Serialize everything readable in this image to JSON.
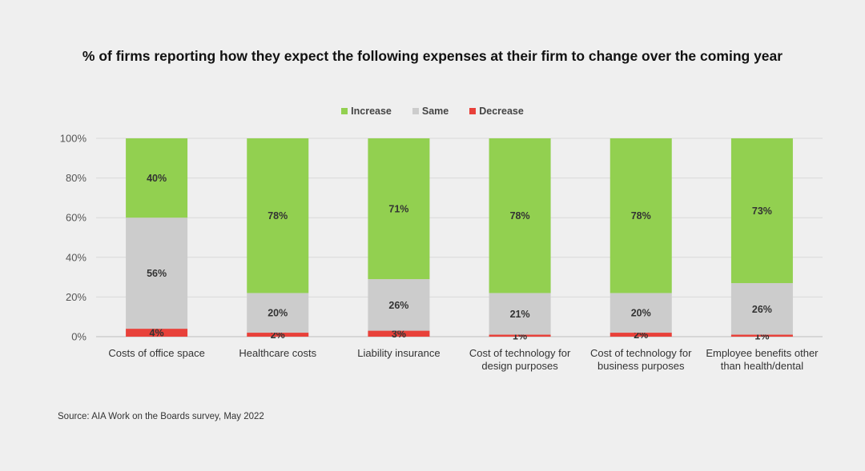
{
  "title": "% of firms reporting how they expect the following expenses at their firm to change over the coming year",
  "source": "Source: AIA Work on the Boards survey, May 2022",
  "colors": {
    "increase": "#92d050",
    "same": "#cccccc",
    "decrease": "#e8413a",
    "grid": "#d9d9d9",
    "background": "#efefef"
  },
  "chart_data": {
    "type": "bar",
    "stacked": true,
    "categories": [
      [
        "Costs of office space"
      ],
      [
        "Healthcare costs"
      ],
      [
        "Liability insurance"
      ],
      [
        "Cost of technology for",
        "design purposes"
      ],
      [
        "Cost of technology for",
        "business purposes"
      ],
      [
        "Employee benefits other",
        "than health/dental"
      ]
    ],
    "series": [
      {
        "name": "Decrease",
        "color": "#e8413a",
        "values": [
          4,
          2,
          3,
          1,
          2,
          1
        ],
        "labels": [
          "4%",
          "2%",
          "3%",
          "1%",
          "2%",
          "1%"
        ]
      },
      {
        "name": "Same",
        "color": "#cccccc",
        "values": [
          56,
          20,
          26,
          21,
          20,
          26
        ],
        "labels": [
          "56%",
          "20%",
          "26%",
          "21%",
          "20%",
          "26%"
        ]
      },
      {
        "name": "Increase",
        "color": "#92d050",
        "values": [
          40,
          78,
          71,
          78,
          78,
          73
        ],
        "labels": [
          "40%",
          "78%",
          "71%",
          "78%",
          "78%",
          "73%"
        ]
      }
    ],
    "legend_order": [
      "Increase",
      "Same",
      "Decrease"
    ],
    "ylim": [
      0,
      100
    ],
    "yticks": [
      "0%",
      "20%",
      "40%",
      "60%",
      "80%",
      "100%"
    ],
    "grid": true,
    "legend_position": "top-center",
    "xlabel": "",
    "ylabel": ""
  }
}
